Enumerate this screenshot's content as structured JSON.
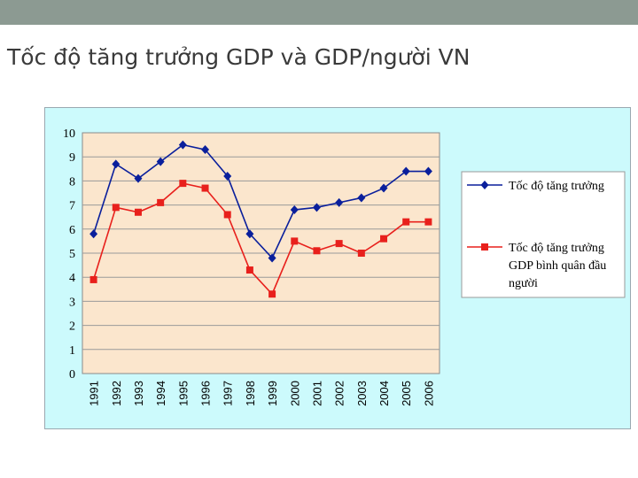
{
  "slide": {
    "title": "Tốc độ tăng trưởng GDP và GDP/người VN",
    "colors": {
      "topbar": "#8c9a92",
      "chart_area": "#ccfafc",
      "plot_area": "#fbe6cd"
    }
  },
  "chart_data": {
    "type": "line",
    "x": [
      "1991",
      "1992",
      "1993",
      "1994",
      "1995",
      "1996",
      "1997",
      "1998",
      "1999",
      "2000",
      "2001",
      "2002",
      "2003",
      "2004",
      "2005",
      "2006"
    ],
    "ylim": [
      0,
      10
    ],
    "yticks": [
      0,
      1,
      2,
      3,
      4,
      5,
      6,
      7,
      8,
      9,
      10
    ],
    "grid": true,
    "legend_position": "right",
    "series": [
      {
        "name": "Tốc độ tăng trưởng",
        "color": "#0a1f9c",
        "marker": "diamond",
        "values": [
          5.8,
          8.7,
          8.1,
          8.8,
          9.5,
          9.3,
          8.2,
          5.8,
          4.8,
          6.8,
          6.9,
          7.1,
          7.3,
          7.7,
          8.4,
          8.4
        ]
      },
      {
        "name": "Tốc độ tăng trưởng GDP bình quân đầu người",
        "name_lines": [
          "Tốc độ tăng trưởng",
          "GDP bình quân đầu",
          "người"
        ],
        "color": "#e8201c",
        "marker": "square",
        "values": [
          3.9,
          6.9,
          6.7,
          7.1,
          7.9,
          7.7,
          6.6,
          4.3,
          3.3,
          5.5,
          5.1,
          5.4,
          5.0,
          5.6,
          6.3,
          6.3
        ]
      }
    ]
  }
}
